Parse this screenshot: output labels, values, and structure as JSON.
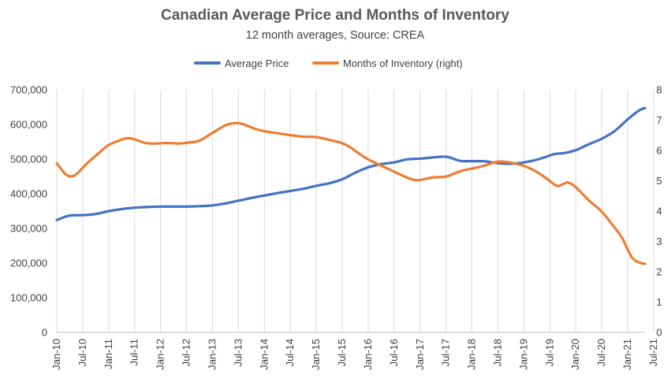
{
  "chart_data": {
    "type": "line",
    "title": "Canadian Average Price and Months of Inventory",
    "subtitle": "12 month averages, Source: CREA",
    "x_labels": [
      "Jan-10",
      "Jul-10",
      "Jan-11",
      "Jul-11",
      "Jan-12",
      "Jul-12",
      "Jan-13",
      "Jul-13",
      "Jan-14",
      "Jul-14",
      "Jan-15",
      "Jul-15",
      "Jan-16",
      "Jul-16",
      "Jan-17",
      "Jul-17",
      "Jan-18",
      "Jul-18",
      "Jan-19",
      "Jul-19",
      "Jan-20",
      "Jul-20",
      "Jan-21",
      "Jul-21"
    ],
    "y_left": {
      "ylim": [
        0,
        700000
      ],
      "ticks": [
        0,
        100000,
        200000,
        300000,
        400000,
        500000,
        600000,
        700000
      ],
      "tick_labels": [
        "0",
        "100,000",
        "200,000",
        "300,000",
        "400,000",
        "500,000",
        "600,000",
        "700,000"
      ]
    },
    "y_right": {
      "ylim": [
        0,
        8
      ],
      "ticks": [
        0,
        1,
        2,
        3,
        4,
        5,
        6,
        7,
        8
      ],
      "tick_labels": [
        "0",
        "1",
        "2",
        "3",
        "4",
        "5",
        "6",
        "7",
        "8"
      ]
    },
    "grid": "vertical",
    "legend_position": "top-center",
    "series": [
      {
        "name": "Average Price",
        "axis": "left",
        "color": "#4472C4",
        "anchors": [
          [
            0,
            322000
          ],
          [
            1,
            330000
          ],
          [
            3,
            338000
          ],
          [
            6,
            338000
          ],
          [
            9,
            341000
          ],
          [
            12,
            350000
          ],
          [
            15,
            356000
          ],
          [
            18,
            360000
          ],
          [
            21,
            362000
          ],
          [
            24,
            363000
          ],
          [
            30,
            363000
          ],
          [
            33,
            364000
          ],
          [
            36,
            366000
          ],
          [
            39,
            372000
          ],
          [
            42,
            380000
          ],
          [
            45,
            388000
          ],
          [
            48,
            395000
          ],
          [
            51,
            402000
          ],
          [
            54,
            408000
          ],
          [
            57,
            414000
          ],
          [
            60,
            423000
          ],
          [
            63,
            430000
          ],
          [
            66,
            441000
          ],
          [
            69,
            461000
          ],
          [
            72,
            477000
          ],
          [
            75,
            486000
          ],
          [
            78,
            490000
          ],
          [
            81,
            500000
          ],
          [
            84,
            501000
          ],
          [
            87,
            505000
          ],
          [
            90,
            508000
          ],
          [
            91,
            505000
          ],
          [
            93,
            494000
          ],
          [
            96,
            494000
          ],
          [
            99,
            494000
          ],
          [
            102,
            488000
          ],
          [
            105,
            486000
          ],
          [
            108,
            490000
          ],
          [
            111,
            498000
          ],
          [
            114,
            510000
          ],
          [
            115,
            516000
          ],
          [
            117,
            516000
          ],
          [
            120,
            525000
          ],
          [
            123,
            543000
          ],
          [
            126,
            558000
          ],
          [
            129,
            580000
          ],
          [
            132,
            615000
          ],
          [
            135,
            645000
          ],
          [
            136,
            648000
          ]
        ]
      },
      {
        "name": "Months of Inventory (right)",
        "axis": "right",
        "color": "#ED7D31",
        "anchors": [
          [
            0,
            5.65
          ],
          [
            1,
            5.35
          ],
          [
            2,
            5.2
          ],
          [
            3,
            5.1
          ],
          [
            4,
            5.15
          ],
          [
            5,
            5.25
          ],
          [
            6,
            5.45
          ],
          [
            8,
            5.7
          ],
          [
            10,
            5.95
          ],
          [
            12,
            6.2
          ],
          [
            14,
            6.3
          ],
          [
            16,
            6.42
          ],
          [
            18,
            6.38
          ],
          [
            20,
            6.25
          ],
          [
            22,
            6.22
          ],
          [
            26,
            6.25
          ],
          [
            28,
            6.22
          ],
          [
            30,
            6.25
          ],
          [
            33,
            6.3
          ],
          [
            34,
            6.4
          ],
          [
            36,
            6.58
          ],
          [
            38,
            6.75
          ],
          [
            39,
            6.85
          ],
          [
            41,
            6.9
          ],
          [
            42,
            6.92
          ],
          [
            44,
            6.82
          ],
          [
            46,
            6.7
          ],
          [
            48,
            6.63
          ],
          [
            51,
            6.57
          ],
          [
            54,
            6.5
          ],
          [
            57,
            6.45
          ],
          [
            60,
            6.45
          ],
          [
            63,
            6.35
          ],
          [
            66,
            6.25
          ],
          [
            68,
            6.1
          ],
          [
            70,
            5.88
          ],
          [
            72,
            5.7
          ],
          [
            75,
            5.5
          ],
          [
            78,
            5.3
          ],
          [
            81,
            5.1
          ],
          [
            83,
            5.0
          ],
          [
            85,
            5.05
          ],
          [
            87,
            5.12
          ],
          [
            90,
            5.12
          ],
          [
            92,
            5.25
          ],
          [
            94,
            5.35
          ],
          [
            96,
            5.4
          ],
          [
            99,
            5.5
          ],
          [
            102,
            5.65
          ],
          [
            105,
            5.6
          ],
          [
            108,
            5.5
          ],
          [
            111,
            5.3
          ],
          [
            114,
            5.0
          ],
          [
            116,
            4.75
          ],
          [
            117,
            4.9
          ],
          [
            118,
            5.0
          ],
          [
            120,
            4.8
          ],
          [
            123,
            4.35
          ],
          [
            126,
            4.0
          ],
          [
            129,
            3.45
          ],
          [
            131,
            3.1
          ],
          [
            132,
            2.7
          ],
          [
            133,
            2.4
          ],
          [
            135,
            2.28
          ],
          [
            136,
            2.25
          ]
        ]
      }
    ]
  }
}
